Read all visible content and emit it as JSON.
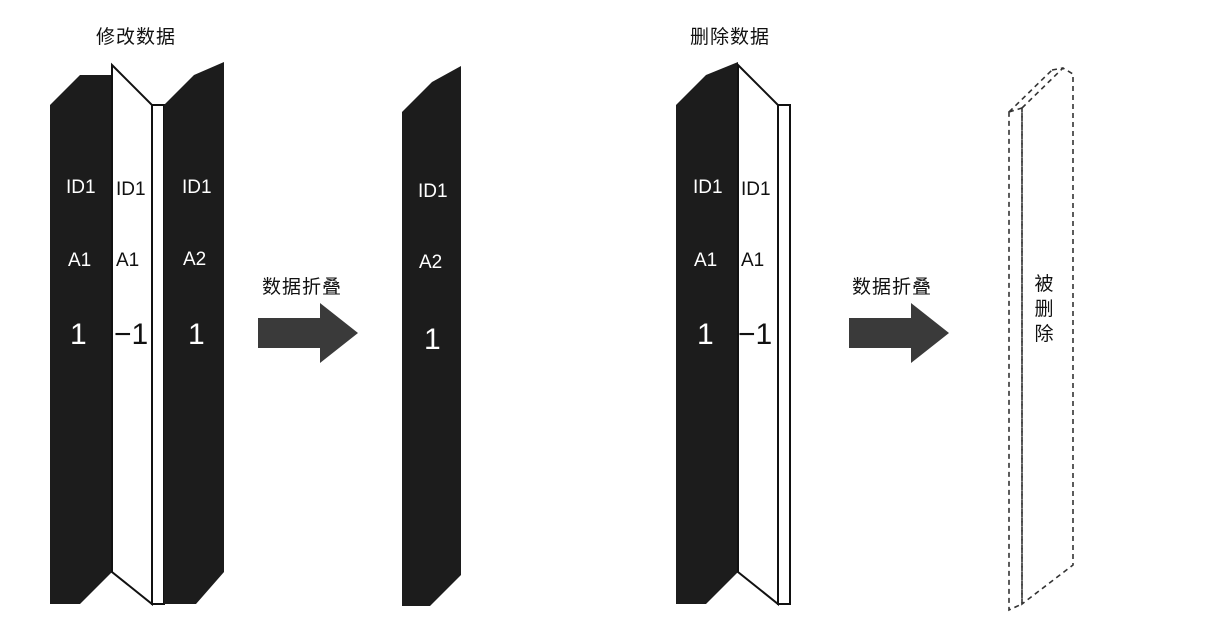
{
  "left": {
    "title": "修改数据",
    "panels": [
      {
        "id": "ID1",
        "attr": "A1",
        "value": "1"
      },
      {
        "id": "ID1",
        "attr": "A1",
        "value": "−1"
      },
      {
        "id": "ID1",
        "attr": "A2",
        "value": "1"
      }
    ],
    "arrow_label": "数据折叠",
    "result": {
      "id": "ID1",
      "attr": "A2",
      "value": "1"
    }
  },
  "right": {
    "title": "删除数据",
    "panels": [
      {
        "id": "ID1",
        "attr": "A1",
        "value": "1"
      },
      {
        "id": "ID1",
        "attr": "A1",
        "value": "−1"
      }
    ],
    "arrow_label": "数据折叠",
    "result": {
      "vertical_label": [
        "被",
        "删",
        "除"
      ]
    }
  },
  "colors": {
    "dark_panel": "#1c1c1c",
    "light_panel": "#ffffff",
    "arrow": "#3a3a3a",
    "dashed": "#333333"
  }
}
